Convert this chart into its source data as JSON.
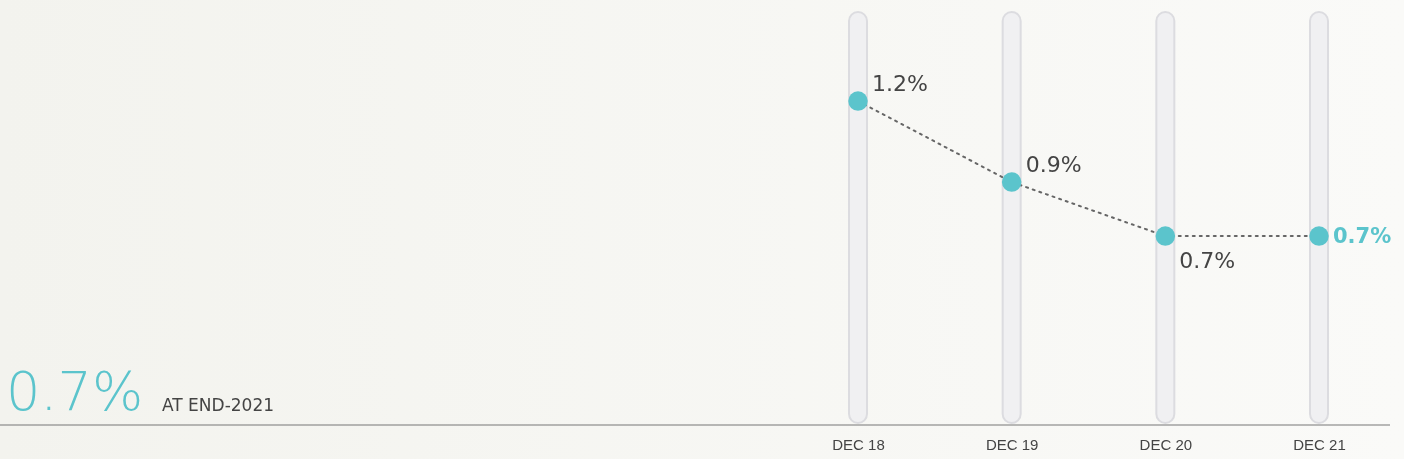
{
  "chart_data": {
    "type": "line",
    "categories": [
      "DEC 18",
      "DEC 19",
      "DEC 20",
      "DEC 21"
    ],
    "series": [
      {
        "color": "#5bc4cc",
        "values": [
          1.2,
          0.9,
          0.7,
          0.7
        ],
        "value_labels": [
          "1.2%",
          "0.9%",
          "0.7%",
          "0.7%"
        ]
      }
    ],
    "bands": [
      {
        "axis": "x",
        "from": "DEC 18",
        "to": "DEC 18",
        "color": "#f0f0f2"
      },
      {
        "axis": "x",
        "from": "DEC 19",
        "to": "DEC 19",
        "color": "#f0f0f2"
      },
      {
        "axis": "x",
        "from": "DEC 20",
        "to": "DEC 20",
        "color": "#f0f0f2"
      },
      {
        "axis": "x",
        "from": "DEC 21",
        "to": "DEC 21",
        "color": "#f0f0f2"
      }
    ],
    "tick_labels": "x",
    "marker": "circle",
    "line_style": "dotted",
    "annotations": [
      "0.7%",
      "AT END-2021"
    ]
  }
}
